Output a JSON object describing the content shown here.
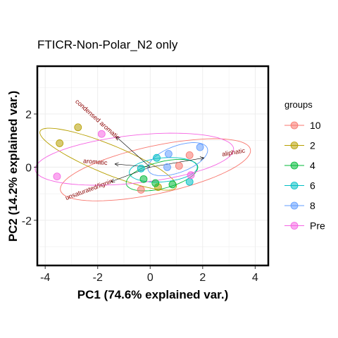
{
  "chart_data": {
    "type": "scatter",
    "subtype": "pca-biplot",
    "title": "FTICR-Non-Polar_N2 only",
    "xlabel": "PC1 (74.6% explained var.)",
    "ylabel": "PC2 (14.2% explained var.)",
    "xlim": [
      -4.3,
      4.5
    ],
    "ylim": [
      -3.7,
      3.8
    ],
    "x_ticks": [
      -4,
      -2,
      0,
      2,
      4
    ],
    "y_ticks": [
      -2,
      0,
      2
    ],
    "grid": true,
    "legend": {
      "title": "groups",
      "position": "right"
    },
    "series": [
      {
        "name": "10",
        "color": "#F8766D",
        "points": [
          [
            1.5,
            0.45
          ],
          [
            -0.35,
            -0.85
          ],
          [
            1.1,
            0.05
          ]
        ]
      },
      {
        "name": "2",
        "color": "#B79F00",
        "points": [
          [
            -2.75,
            1.5
          ],
          [
            -3.45,
            0.9
          ],
          [
            0.3,
            -0.75
          ]
        ]
      },
      {
        "name": "4",
        "color": "#00BA38",
        "points": [
          [
            0.2,
            -0.6
          ],
          [
            0.85,
            -0.65
          ],
          [
            -0.25,
            -0.45
          ]
        ]
      },
      {
        "name": "6",
        "color": "#00BFC4",
        "points": [
          [
            -0.35,
            -0.05
          ],
          [
            0.25,
            0.35
          ],
          [
            1.5,
            -0.55
          ]
        ]
      },
      {
        "name": "8",
        "color": "#619CFF",
        "points": [
          [
            0.7,
            0.5
          ],
          [
            1.9,
            0.75
          ],
          [
            0.65,
            0.0
          ]
        ]
      },
      {
        "name": "Pre",
        "color": "#F564E3",
        "points": [
          [
            -1.85,
            1.25
          ],
          [
            -3.55,
            -0.35
          ],
          [
            1.55,
            -0.3
          ]
        ]
      }
    ],
    "ellipses": [
      {
        "group": "10",
        "center": [
          0.2,
          -0.1
        ],
        "rx": 3.7,
        "ry": 0.9,
        "angle": 12
      },
      {
        "group": "2",
        "center": [
          -1.6,
          0.3
        ],
        "rx": 2.8,
        "ry": 0.55,
        "angle": -22
      },
      {
        "group": "4",
        "center": [
          0.45,
          -0.3
        ],
        "rx": 1.4,
        "ry": 0.5,
        "angle": 14
      },
      {
        "group": "6",
        "center": [
          0.5,
          -0.1
        ],
        "rx": 1.3,
        "ry": 0.45,
        "angle": 5
      },
      {
        "group": "8",
        "center": [
          1.05,
          0.3
        ],
        "rx": 1.2,
        "ry": 0.5,
        "angle": 20
      },
      {
        "group": "Pre",
        "center": [
          -0.6,
          0.3
        ],
        "rx": 3.8,
        "ry": 0.9,
        "angle": 6
      }
    ],
    "vectors": [
      {
        "label": "condensed aromatic",
        "end": [
          -1.3,
          1.15
        ]
      },
      {
        "label": "aliphatic",
        "end": [
          2.05,
          0.35
        ]
      },
      {
        "label": "aromatic",
        "end": [
          -1.35,
          0.12
        ]
      },
      {
        "label": "unsaturated/lignin",
        "end": [
          -1.5,
          -0.55
        ]
      }
    ],
    "vector_origin": [
      0,
      0
    ]
  }
}
